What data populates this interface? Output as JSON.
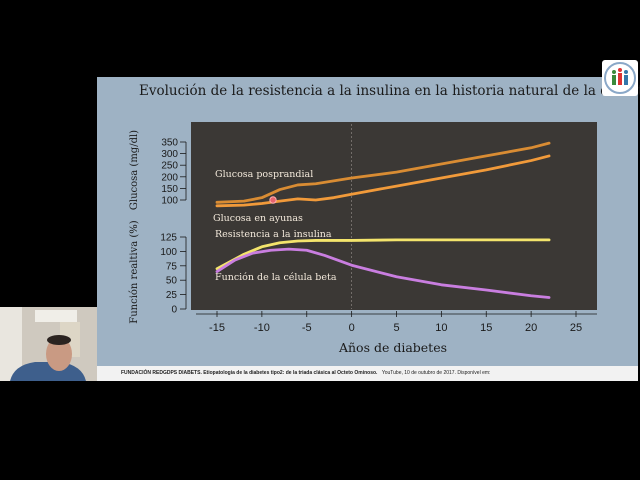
{
  "slide": {
    "title": "Evolución de la resistencia a la insulina en la historia natural de la diabetes",
    "citation_bold": "FUNDACIÓN REDGDPS DIABETS. Etiopatologia de la diabetes tipo2: de la triada clásica al Octeto Ominoso.",
    "citation_rest": "YouTube, 10 de outubro de 2017. Disponível em:"
  },
  "colors": {
    "slide_bg": "#9eb2c4",
    "plot_bg": "#3b3835",
    "orange_dark": "#d98c33",
    "orange_light": "#f19a3a",
    "yellow": "#f3e46c",
    "purple": "#c97ee0"
  },
  "chart_data": [
    {
      "type": "line",
      "ylabel": "Glucosa (mg/dl)",
      "ylim": [
        100,
        350
      ],
      "yticks": [
        100,
        150,
        200,
        250,
        300,
        350
      ],
      "xlim": [
        -17,
        27
      ],
      "series": [
        {
          "name": "Glucosa posprandial",
          "color": "#d98c33",
          "x": [
            -15,
            -12,
            -10,
            -8,
            -6,
            -4,
            0,
            5,
            10,
            15,
            20,
            22
          ],
          "values": [
            90,
            95,
            110,
            145,
            165,
            170,
            195,
            220,
            255,
            290,
            325,
            345
          ]
        },
        {
          "name": "Glucosa en ayunas",
          "color": "#f19a3a",
          "x": [
            -15,
            -12,
            -10,
            -8,
            -6,
            -4,
            -2,
            0,
            5,
            10,
            15,
            20,
            22
          ],
          "values": [
            75,
            78,
            85,
            95,
            105,
            100,
            110,
            125,
            160,
            195,
            230,
            270,
            290
          ]
        }
      ]
    },
    {
      "type": "line",
      "xlabel": "Años de diabetes",
      "ylabel": "Función realtiva (%)",
      "xlim": [
        -17,
        27
      ],
      "xticks": [
        -15,
        -10,
        -5,
        0,
        5,
        10,
        15,
        20,
        25
      ],
      "ylim": [
        0,
        125
      ],
      "yticks": [
        0,
        25,
        50,
        75,
        100,
        125
      ],
      "series": [
        {
          "name": "Resistencia a la insulina",
          "color": "#f3e46c",
          "x": [
            -15,
            -12,
            -10,
            -8,
            -6,
            -4,
            -2,
            0,
            5,
            10,
            15,
            20,
            22
          ],
          "values": [
            70,
            95,
            108,
            115,
            118,
            119,
            119,
            119,
            120,
            120,
            120,
            120,
            120
          ]
        },
        {
          "name": "Función de la célula beta",
          "color": "#c97ee0",
          "x": [
            -15,
            -13,
            -11,
            -9,
            -7,
            -5,
            -3,
            0,
            5,
            10,
            15,
            20,
            22
          ],
          "values": [
            65,
            85,
            97,
            102,
            104,
            102,
            93,
            76,
            56,
            42,
            33,
            23,
            20
          ]
        }
      ]
    }
  ]
}
